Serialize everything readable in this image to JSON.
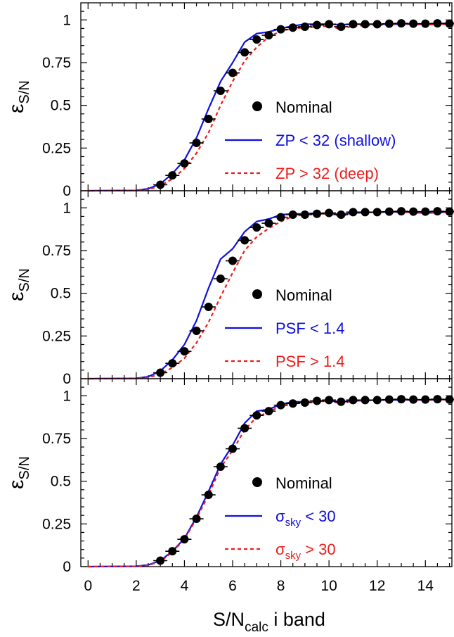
{
  "chart_data": {
    "type": "line",
    "xlabel": {
      "main": "S/N",
      "sub": "calc",
      "rest": "  i band"
    },
    "ylabel": {
      "main": "ε",
      "sub": "S/N"
    },
    "xlim": [
      -0.3,
      15.1
    ],
    "ylim": [
      0,
      1.1
    ],
    "xticks": [
      "0",
      "2",
      "4",
      "6",
      "8",
      "10",
      "12",
      "14"
    ],
    "yticks": [
      "0",
      "0.25",
      "0.5",
      "0.75",
      "1"
    ],
    "colors": {
      "nominal": "#000000",
      "low": "#1010e0",
      "high": "#ee1c1c"
    },
    "nominal_x": [
      3.0,
      3.5,
      4.0,
      4.5,
      5.0,
      5.5,
      6.0,
      6.5,
      7.0,
      7.5,
      8.0,
      8.5,
      9.0,
      9.5,
      10.0,
      10.5,
      11.0,
      11.5,
      12.0,
      12.5,
      13.0,
      13.5,
      14.0,
      14.5,
      15.0
    ],
    "panels": [
      {
        "nominal": {
          "name": "Nominal",
          "y": [
            0.035,
            0.09,
            0.16,
            0.28,
            0.42,
            0.585,
            0.69,
            0.81,
            0.885,
            0.91,
            0.945,
            0.955,
            0.96,
            0.97,
            0.975,
            0.96,
            0.975,
            0.975,
            0.975,
            0.978,
            0.98,
            0.978,
            0.978,
            0.98,
            0.978
          ]
        },
        "legend": [
          {
            "prefix": "ZP",
            "sub": "",
            "suffix": " < 32 (shallow)"
          },
          {
            "prefix": "ZP",
            "sub": "",
            "suffix": " > 32 (deep)"
          }
        ],
        "low": {
          "x": [
            0,
            2.0,
            2.5,
            3.0,
            3.5,
            4.0,
            4.5,
            5.0,
            5.5,
            6.0,
            6.5,
            7.0,
            7.5,
            8.0,
            8.5,
            9.0,
            9.5,
            10.0,
            10.5,
            11.0,
            12.0,
            13.0,
            14.0,
            15.0
          ],
          "y": [
            0,
            0.002,
            0.012,
            0.04,
            0.1,
            0.18,
            0.31,
            0.48,
            0.64,
            0.75,
            0.87,
            0.92,
            0.93,
            0.95,
            0.965,
            0.975,
            0.975,
            0.975,
            0.972,
            0.975,
            0.975,
            0.975,
            0.975,
            0.98
          ]
        },
        "high": {
          "x": [
            0,
            2.0,
            2.5,
            3.0,
            3.5,
            4.0,
            4.5,
            5.0,
            5.5,
            6.0,
            6.5,
            7.0,
            7.5,
            8.0,
            8.5,
            9.0,
            9.5,
            10.0,
            10.5,
            11.0,
            12.0,
            13.0,
            14.0,
            15.0
          ],
          "y": [
            0,
            0.002,
            0.008,
            0.028,
            0.07,
            0.13,
            0.22,
            0.34,
            0.5,
            0.64,
            0.76,
            0.84,
            0.9,
            0.935,
            0.95,
            0.955,
            0.96,
            0.965,
            0.945,
            0.965,
            0.97,
            0.975,
            0.972,
            0.975
          ]
        }
      },
      {
        "nominal": {
          "name": "Nominal",
          "y": [
            0.035,
            0.09,
            0.16,
            0.28,
            0.42,
            0.585,
            0.69,
            0.81,
            0.885,
            0.91,
            0.945,
            0.96,
            0.96,
            0.965,
            0.97,
            0.96,
            0.975,
            0.975,
            0.975,
            0.978,
            0.98,
            0.978,
            0.978,
            0.98,
            0.978
          ]
        },
        "legend": [
          {
            "prefix": "PSF",
            "sub": "",
            "suffix": " < 1.4"
          },
          {
            "prefix": "PSF",
            "sub": "",
            "suffix": " > 1.4"
          }
        ],
        "low": {
          "x": [
            0,
            2.0,
            2.5,
            3.0,
            3.5,
            4.0,
            4.5,
            5.0,
            5.5,
            6.0,
            6.5,
            7.0,
            7.5,
            8.0,
            8.5,
            9.0,
            9.5,
            10.0,
            10.5,
            11.0,
            12.0,
            13.0,
            14.0,
            15.0
          ],
          "y": [
            0,
            0.002,
            0.012,
            0.045,
            0.11,
            0.2,
            0.34,
            0.53,
            0.7,
            0.76,
            0.86,
            0.92,
            0.935,
            0.96,
            0.965,
            0.965,
            0.97,
            0.965,
            0.962,
            0.97,
            0.975,
            0.975,
            0.97,
            0.975
          ]
        },
        "high": {
          "x": [
            0,
            2.0,
            2.5,
            3.0,
            3.5,
            4.0,
            4.5,
            5.0,
            5.5,
            6.0,
            6.5,
            7.0,
            7.5,
            8.0,
            8.5,
            9.0,
            9.5,
            10.0,
            10.5,
            11.0,
            12.0,
            13.0,
            14.0,
            15.0
          ],
          "y": [
            0,
            0.002,
            0.008,
            0.025,
            0.065,
            0.12,
            0.21,
            0.33,
            0.48,
            0.62,
            0.75,
            0.83,
            0.88,
            0.92,
            0.95,
            0.96,
            0.965,
            0.965,
            0.95,
            0.97,
            0.975,
            0.975,
            0.975,
            0.975
          ]
        }
      },
      {
        "nominal": {
          "name": "Nominal",
          "y": [
            0.035,
            0.09,
            0.16,
            0.28,
            0.42,
            0.585,
            0.69,
            0.81,
            0.885,
            0.91,
            0.945,
            0.955,
            0.96,
            0.97,
            0.975,
            0.965,
            0.975,
            0.975,
            0.975,
            0.978,
            0.98,
            0.978,
            0.978,
            0.98,
            0.978
          ]
        },
        "legend": [
          {
            "prefix": "σ",
            "sub": "sky",
            "suffix": " < 30"
          },
          {
            "prefix": "σ",
            "sub": "sky",
            "suffix": " > 30"
          }
        ],
        "low": {
          "x": [
            0,
            2.0,
            2.5,
            3.0,
            3.5,
            4.0,
            4.5,
            5.0,
            5.5,
            6.0,
            6.5,
            7.0,
            7.5,
            8.0,
            8.5,
            9.0,
            9.5,
            10.0,
            10.5,
            11.0,
            12.0,
            13.0,
            14.0,
            15.0
          ],
          "y": [
            0,
            0.002,
            0.01,
            0.035,
            0.09,
            0.165,
            0.29,
            0.44,
            0.6,
            0.71,
            0.84,
            0.91,
            0.92,
            0.95,
            0.965,
            0.965,
            0.968,
            0.97,
            0.965,
            0.97,
            0.975,
            0.975,
            0.975,
            0.978
          ]
        },
        "high": {
          "x": [
            0,
            2.0,
            2.5,
            3.0,
            3.5,
            4.0,
            4.5,
            5.0,
            5.5,
            6.0,
            6.5,
            7.0,
            7.5,
            8.0,
            8.5,
            9.0,
            9.5,
            10.0,
            10.5,
            11.0,
            12.0,
            13.0,
            14.0,
            15.0
          ],
          "y": [
            0,
            0.002,
            0.008,
            0.03,
            0.085,
            0.16,
            0.28,
            0.42,
            0.58,
            0.68,
            0.8,
            0.875,
            0.905,
            0.94,
            0.955,
            0.96,
            0.965,
            0.97,
            0.955,
            0.97,
            0.975,
            0.975,
            0.975,
            0.978
          ]
        }
      }
    ]
  }
}
